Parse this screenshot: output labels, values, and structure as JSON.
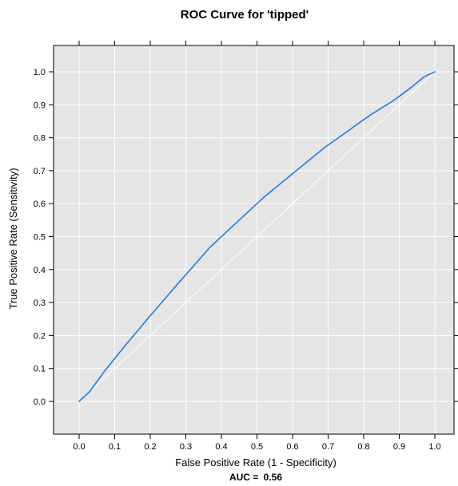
{
  "chart_data": {
    "type": "line",
    "title": "ROC Curve for 'tipped'",
    "xlabel": "False Positive Rate (1 - Specificity)",
    "ylabel": "True Positive Rate (Sensitivity)",
    "xlim": [
      -0.07,
      1.07
    ],
    "ylim": [
      -0.07,
      1.07
    ],
    "x_ticks": [
      "0.0",
      "0.1",
      "0.2",
      "0.3",
      "0.4",
      "0.5",
      "0.6",
      "0.7",
      "0.8",
      "0.9",
      "1.0"
    ],
    "y_ticks": [
      "0.0",
      "0.1",
      "0.2",
      "0.3",
      "0.4",
      "0.5",
      "0.6",
      "0.7",
      "0.8",
      "0.9",
      "1.0"
    ],
    "grid": true,
    "annotation": {
      "label": "AUC = ",
      "value": "0.56"
    },
    "series": [
      {
        "color": "#1a7ee6",
        "x": [
          0.0,
          0.03,
          0.07,
          0.13,
          0.2,
          0.28,
          0.37,
          0.52,
          0.69,
          0.82,
          0.88,
          0.93,
          0.97,
          1.0
        ],
        "y": [
          0.0,
          0.03,
          0.09,
          0.17,
          0.26,
          0.36,
          0.47,
          0.62,
          0.77,
          0.87,
          0.91,
          0.95,
          0.985,
          1.0
        ]
      },
      {
        "color": "#ffffff",
        "x": [
          0.0,
          1.0
        ],
        "y": [
          0.0,
          1.0
        ]
      }
    ]
  }
}
